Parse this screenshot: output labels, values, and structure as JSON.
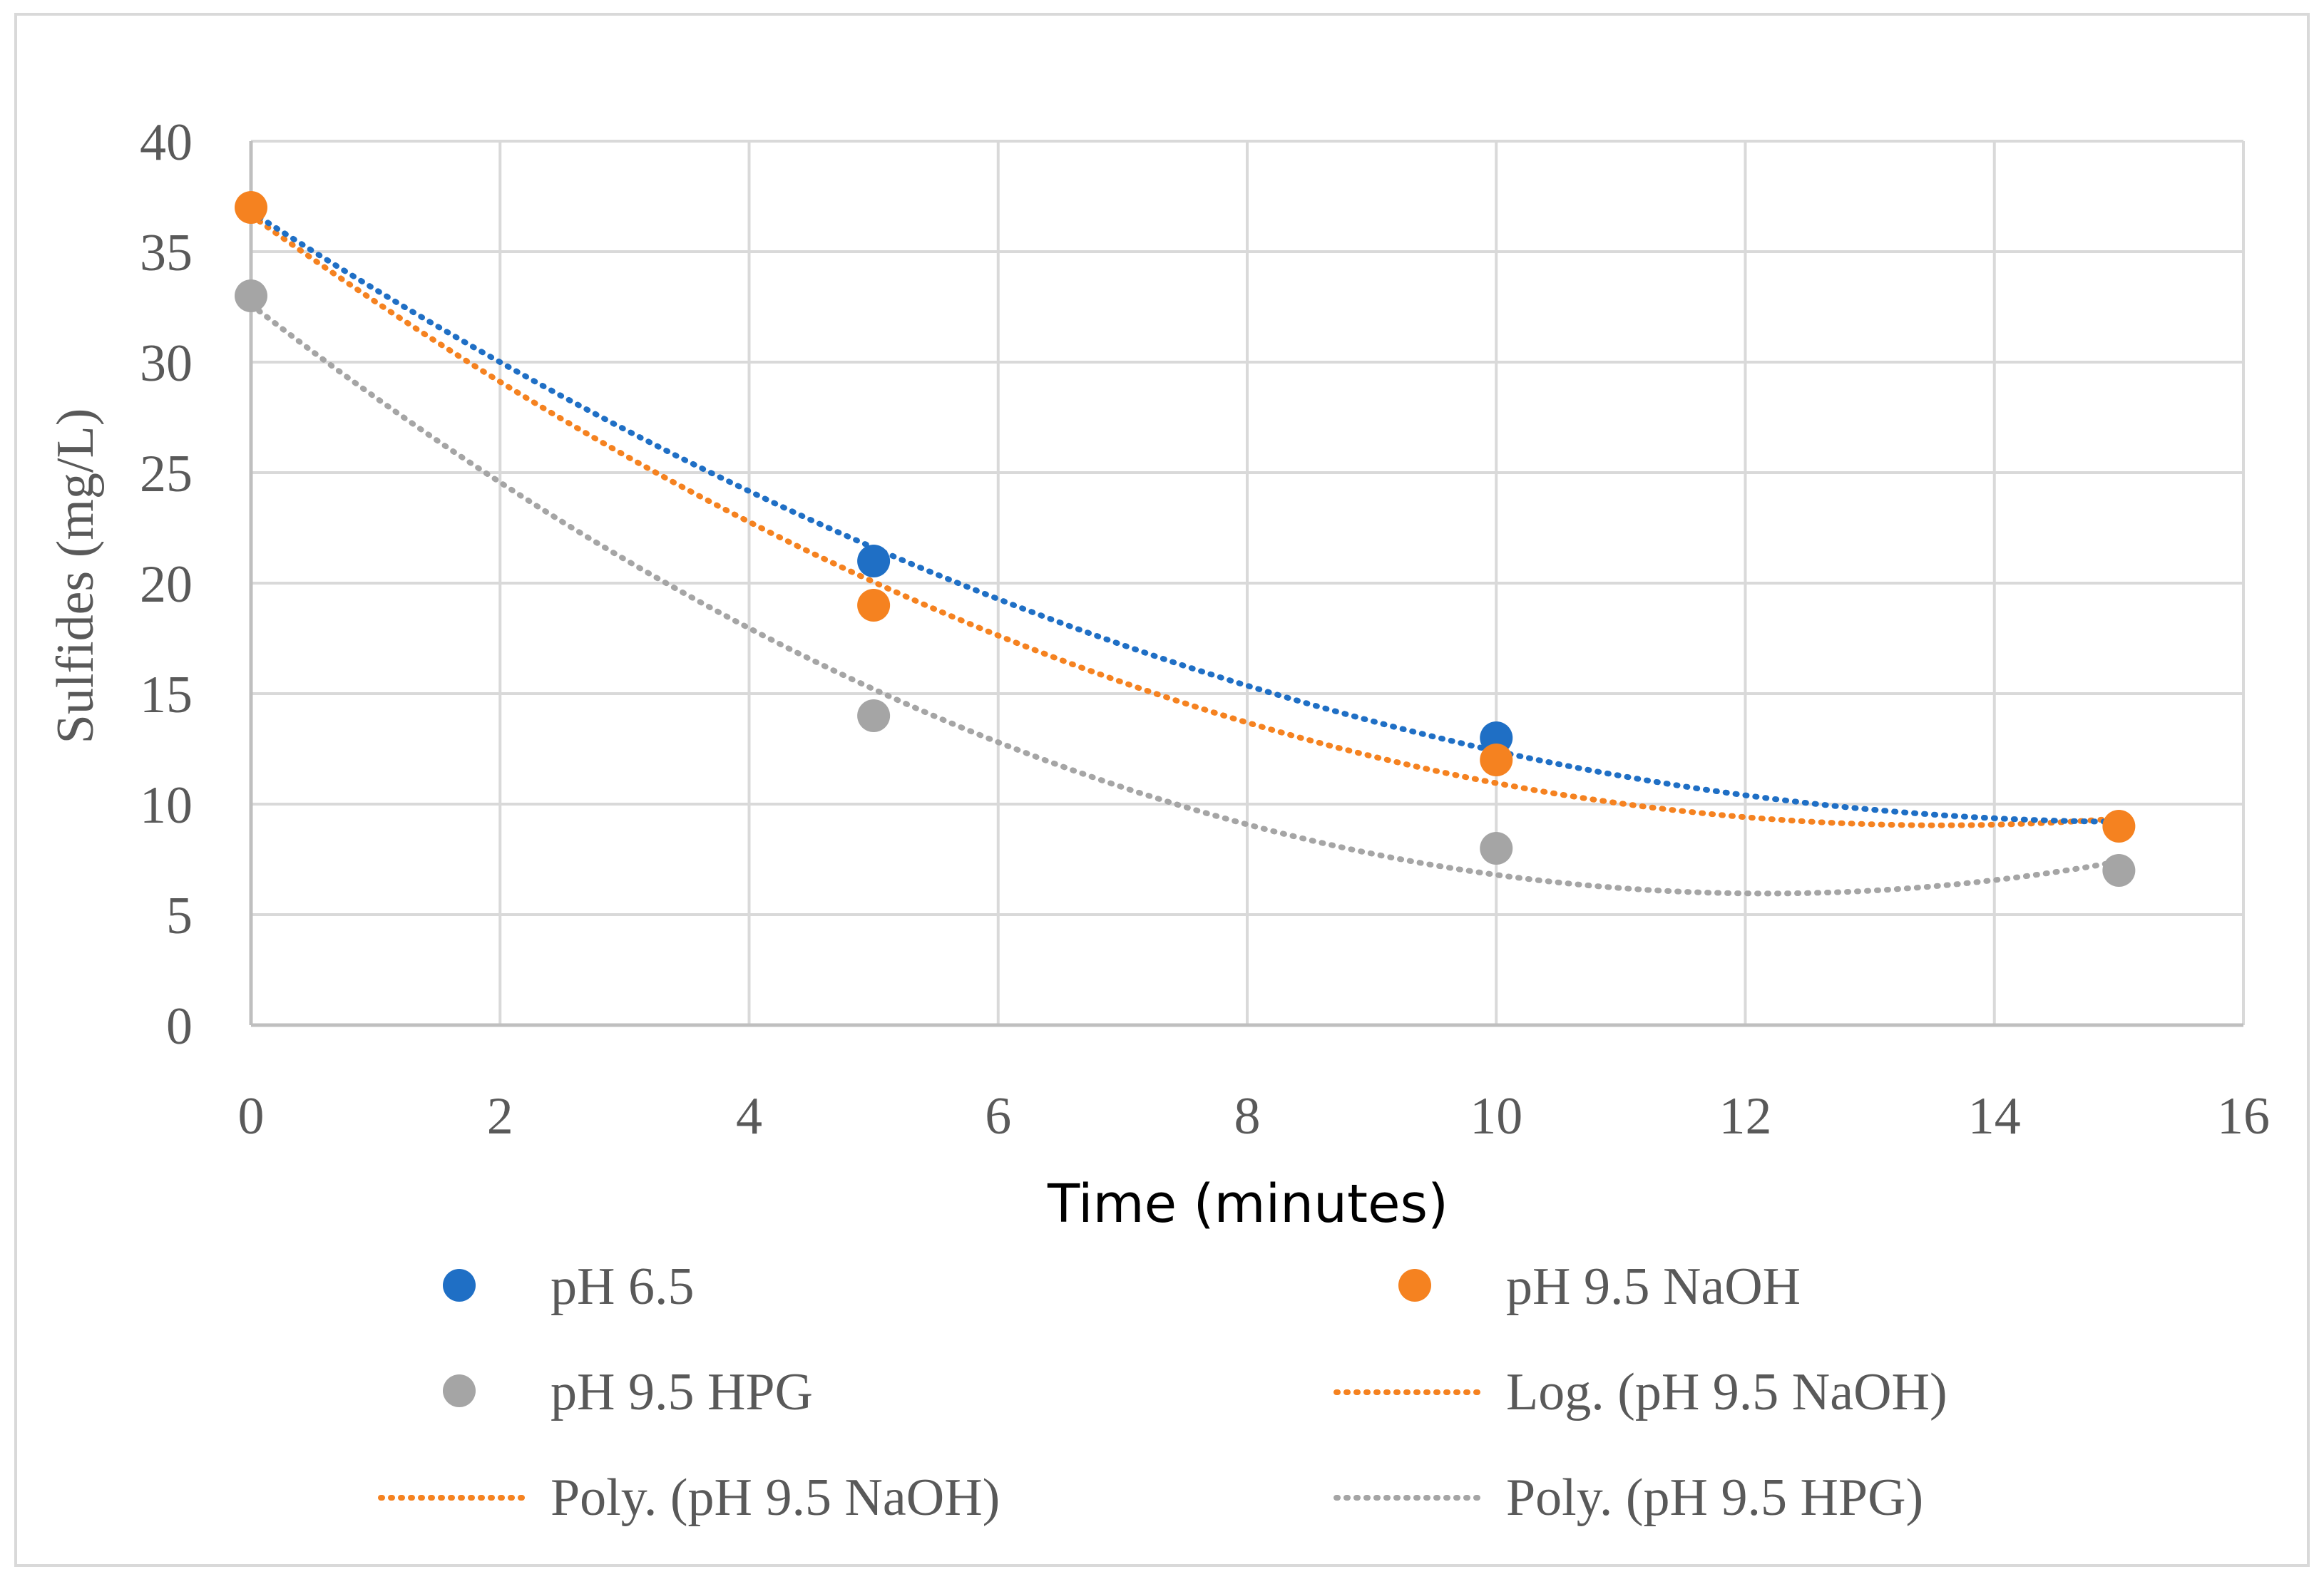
{
  "chart_data": {
    "type": "scatter",
    "title": "",
    "xlabel": "Time (minutes)",
    "ylabel": "Sulfides (mg/L)",
    "xlim": [
      0,
      16
    ],
    "ylim": [
      0,
      40
    ],
    "xticks": [
      0,
      2,
      4,
      6,
      8,
      10,
      12,
      14,
      16
    ],
    "yticks": [
      0,
      5,
      10,
      15,
      20,
      25,
      30,
      35,
      40
    ],
    "grid": true,
    "legend_position": "bottom",
    "series": [
      {
        "name": "pH 6.5",
        "kind": "points",
        "color": "#1F6FC5",
        "x": [
          5,
          10
        ],
        "y": [
          21,
          13
        ]
      },
      {
        "name": "pH 9.5 NaOH",
        "kind": "points",
        "color": "#F58220",
        "x": [
          0,
          5,
          10,
          15
        ],
        "y": [
          37,
          19,
          12,
          9
        ]
      },
      {
        "name": "pH 9.5 HPG",
        "kind": "points",
        "color": "#A5A5A5",
        "x": [
          0,
          5,
          10,
          15
        ],
        "y": [
          33,
          14,
          8,
          7
        ]
      },
      {
        "name": "Log. (pH 9.5 NaOH)",
        "kind": "trendline",
        "color": "#F58220",
        "legend_only": true
      },
      {
        "name": "Poly. (pH 9.5 NaOH)",
        "kind": "trendline",
        "color": "#F58220",
        "fit": "poly2",
        "x": [
          0,
          5,
          10,
          15
        ],
        "y": [
          37,
          19,
          12,
          9
        ]
      },
      {
        "name": "Poly. (pH 9.5 HPG)",
        "kind": "trendline",
        "color": "#A5A5A5",
        "fit": "poly2",
        "x": [
          0,
          5,
          10,
          15
        ],
        "y": [
          33,
          14,
          8,
          7
        ]
      },
      {
        "name": "",
        "kind": "trendline-unlisted",
        "color": "#1F6FC5",
        "x": [
          0,
          5,
          10,
          15
        ],
        "y": [
          37,
          21,
          13,
          9
        ]
      }
    ]
  }
}
